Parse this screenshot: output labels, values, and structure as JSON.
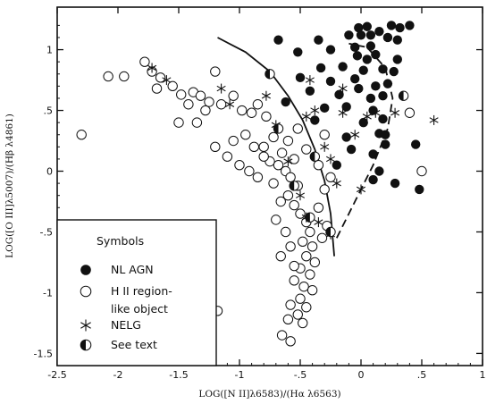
{
  "chart_data": {
    "type": "scatter",
    "title": "",
    "xlabel": "LOG([N II]λ6583)/(Hα λ6563)",
    "ylabel": "LOG([O III]λ5007)/(Hβ λ4861)",
    "xlim": [
      -2.5,
      1.0
    ],
    "ylim": [
      -1.6,
      1.35
    ],
    "grid": false,
    "x_ticks": [
      {
        "value": -2.5,
        "label": "-2.5"
      },
      {
        "value": -2.0,
        "label": "-2"
      },
      {
        "value": -1.5,
        "label": "-1.5"
      },
      {
        "value": -1.0,
        "label": "-1"
      },
      {
        "value": -0.5,
        "label": "-.5"
      },
      {
        "value": 0.0,
        "label": "0"
      },
      {
        "value": 0.5,
        "label": ".5"
      },
      {
        "value": 1.0,
        "label": "1"
      }
    ],
    "y_ticks": [
      {
        "value": 1.0,
        "label": "1"
      },
      {
        "value": 0.5,
        "label": ".5"
      },
      {
        "value": 0.0,
        "label": "0"
      },
      {
        "value": -0.5,
        "label": "-.5"
      },
      {
        "value": -1.0,
        "label": "-1"
      },
      {
        "value": -1.5,
        "label": "-1.5"
      }
    ],
    "legend": {
      "title": "Symbols",
      "position": "bottom-left",
      "entries": [
        {
          "marker": "filled-circle",
          "label": "NL AGN"
        },
        {
          "marker": "open-circle",
          "label": "H II region-",
          "label2": "like object"
        },
        {
          "marker": "asterisk",
          "label": "NELG"
        },
        {
          "marker": "half-filled-circle",
          "label": "See text"
        }
      ]
    },
    "series": [
      {
        "marker": "filled-circle",
        "points": [
          [
            -0.02,
            1.18
          ],
          [
            0.05,
            1.19
          ],
          [
            0.0,
            1.12
          ],
          [
            -0.1,
            1.12
          ],
          [
            -0.05,
            1.02
          ],
          [
            0.08,
            1.03
          ],
          [
            0.15,
            1.15
          ],
          [
            0.22,
            1.1
          ],
          [
            0.25,
            1.2
          ],
          [
            0.32,
            1.18
          ],
          [
            0.4,
            1.2
          ],
          [
            -0.03,
            0.95
          ],
          [
            0.05,
            0.92
          ],
          [
            0.12,
            0.96
          ],
          [
            -0.35,
            1.08
          ],
          [
            -0.68,
            1.08
          ],
          [
            -0.52,
            0.98
          ],
          [
            -0.33,
            0.85
          ],
          [
            -0.15,
            0.86
          ],
          [
            0.02,
            0.83
          ],
          [
            0.18,
            0.84
          ],
          [
            0.27,
            0.82
          ],
          [
            0.3,
            0.92
          ],
          [
            -0.5,
            0.77
          ],
          [
            -0.25,
            0.74
          ],
          [
            -0.05,
            0.76
          ],
          [
            0.12,
            0.7
          ],
          [
            0.22,
            0.72
          ],
          [
            -0.42,
            0.66
          ],
          [
            -0.18,
            0.63
          ],
          [
            0.08,
            0.6
          ],
          [
            0.18,
            0.62
          ],
          [
            -0.3,
            0.52
          ],
          [
            -0.12,
            0.53
          ],
          [
            0.1,
            0.5
          ],
          [
            -0.62,
            0.57
          ],
          [
            -0.38,
            0.42
          ],
          [
            0.02,
            0.4
          ],
          [
            0.18,
            0.43
          ],
          [
            -0.12,
            0.28
          ],
          [
            0.15,
            0.31
          ],
          [
            0.2,
            0.3
          ],
          [
            -0.08,
            0.18
          ],
          [
            0.1,
            0.14
          ],
          [
            -0.2,
            0.05
          ],
          [
            0.15,
            0.0
          ],
          [
            0.28,
            -0.1
          ],
          [
            0.45,
            0.22
          ],
          [
            0.48,
            -0.15
          ],
          [
            0.1,
            -0.07
          ],
          [
            0.2,
            0.22
          ],
          [
            -0.02,
            0.68
          ],
          [
            0.3,
            1.08
          ],
          [
            -0.25,
            1.0
          ],
          [
            0.08,
            1.12
          ]
        ]
      },
      {
        "marker": "open-circle",
        "points": [
          [
            -2.3,
            0.3
          ],
          [
            -2.08,
            0.78
          ],
          [
            -1.95,
            0.78
          ],
          [
            -1.78,
            0.9
          ],
          [
            -1.72,
            0.82
          ],
          [
            -1.65,
            0.77
          ],
          [
            -1.55,
            0.7
          ],
          [
            -1.48,
            0.63
          ],
          [
            -1.42,
            0.55
          ],
          [
            -1.38,
            0.65
          ],
          [
            -1.32,
            0.62
          ],
          [
            -1.25,
            0.57
          ],
          [
            -1.2,
            0.82
          ],
          [
            -1.15,
            0.55
          ],
          [
            -1.05,
            0.62
          ],
          [
            -0.98,
            0.5
          ],
          [
            -0.9,
            0.48
          ],
          [
            -0.85,
            0.55
          ],
          [
            -0.78,
            0.45
          ],
          [
            -1.35,
            0.4
          ],
          [
            -1.05,
            0.25
          ],
          [
            -0.95,
            0.3
          ],
          [
            -0.88,
            0.2
          ],
          [
            -0.8,
            0.2
          ],
          [
            -0.72,
            0.28
          ],
          [
            -0.65,
            0.15
          ],
          [
            -0.6,
            0.25
          ],
          [
            -0.55,
            0.1
          ],
          [
            -0.68,
            0.05
          ],
          [
            -0.75,
            0.08
          ],
          [
            -0.62,
            0.0
          ],
          [
            -0.58,
            -0.05
          ],
          [
            -0.52,
            -0.12
          ],
          [
            -0.6,
            -0.2
          ],
          [
            -0.55,
            -0.28
          ],
          [
            -0.5,
            -0.35
          ],
          [
            -0.45,
            -0.42
          ],
          [
            -0.42,
            -0.5
          ],
          [
            -0.48,
            -0.58
          ],
          [
            -0.4,
            -0.62
          ],
          [
            -0.45,
            -0.7
          ],
          [
            -0.38,
            -0.75
          ],
          [
            -0.5,
            -0.8
          ],
          [
            -0.42,
            -0.85
          ],
          [
            -0.55,
            -0.9
          ],
          [
            -0.47,
            -0.95
          ],
          [
            -0.4,
            -0.98
          ],
          [
            -0.5,
            -1.05
          ],
          [
            -0.58,
            -1.1
          ],
          [
            -0.45,
            -1.12
          ],
          [
            -0.52,
            -1.18
          ],
          [
            -0.6,
            -1.22
          ],
          [
            -0.48,
            -1.25
          ],
          [
            -0.65,
            -1.35
          ],
          [
            -0.58,
            -1.4
          ],
          [
            -0.3,
            -0.15
          ],
          [
            -0.35,
            -0.3
          ],
          [
            -0.28,
            -0.45
          ],
          [
            -0.32,
            -0.55
          ],
          [
            -1.1,
            0.12
          ],
          [
            -1.0,
            0.05
          ],
          [
            -0.92,
            0.0
          ],
          [
            -0.85,
            -0.05
          ],
          [
            -0.8,
            0.12
          ],
          [
            -0.72,
            -0.1
          ],
          [
            -0.66,
            -0.25
          ],
          [
            -0.7,
            -0.4
          ],
          [
            -0.62,
            -0.5
          ],
          [
            -0.58,
            -0.62
          ],
          [
            -0.66,
            -0.7
          ],
          [
            -0.55,
            -0.78
          ],
          [
            -1.2,
            0.2
          ],
          [
            -1.28,
            0.5
          ],
          [
            -1.5,
            0.4
          ],
          [
            -1.68,
            0.68
          ],
          [
            -0.52,
            0.35
          ],
          [
            -0.45,
            0.18
          ],
          [
            -0.35,
            0.05
          ],
          [
            -0.3,
            0.3
          ],
          [
            -0.25,
            -0.05
          ],
          [
            -1.18,
            -1.15
          ],
          [
            0.5,
            0.0
          ],
          [
            0.4,
            0.48
          ]
        ]
      },
      {
        "marker": "asterisk",
        "points": [
          [
            -1.72,
            0.85
          ],
          [
            -1.6,
            0.75
          ],
          [
            -1.15,
            0.68
          ],
          [
            -1.08,
            0.55
          ],
          [
            -0.78,
            0.62
          ],
          [
            -0.7,
            0.38
          ],
          [
            -0.6,
            0.08
          ],
          [
            -0.45,
            0.45
          ],
          [
            -0.38,
            0.5
          ],
          [
            -0.15,
            0.48
          ],
          [
            0.05,
            0.45
          ],
          [
            0.12,
            0.48
          ],
          [
            -0.05,
            0.3
          ],
          [
            -0.25,
            0.1
          ],
          [
            -0.2,
            -0.1
          ],
          [
            -0.5,
            -0.2
          ],
          [
            -0.45,
            -0.38
          ],
          [
            -0.35,
            -0.42
          ],
          [
            -0.25,
            -0.52
          ],
          [
            0.0,
            -0.15
          ],
          [
            0.6,
            0.42
          ],
          [
            0.28,
            0.48
          ],
          [
            -0.15,
            0.68
          ],
          [
            -0.42,
            0.75
          ],
          [
            -0.3,
            0.2
          ]
        ]
      },
      {
        "marker": "half-filled-circle",
        "points": [
          [
            -0.75,
            0.8
          ],
          [
            -0.68,
            0.35
          ],
          [
            -0.55,
            -0.12
          ],
          [
            -0.42,
            -0.38
          ],
          [
            -0.25,
            -0.5
          ],
          [
            0.35,
            0.62
          ],
          [
            -0.38,
            0.12
          ]
        ]
      }
    ],
    "curves": [
      {
        "style": "solid",
        "points": [
          [
            -1.18,
            1.1
          ],
          [
            -0.95,
            0.98
          ],
          [
            -0.75,
            0.82
          ],
          [
            -0.6,
            0.62
          ],
          [
            -0.48,
            0.42
          ],
          [
            -0.38,
            0.18
          ],
          [
            -0.3,
            -0.08
          ],
          [
            -0.25,
            -0.35
          ],
          [
            -0.22,
            -0.7
          ]
        ]
      },
      {
        "style": "dashed",
        "points": [
          [
            -0.2,
            -0.55
          ],
          [
            -0.05,
            -0.25
          ],
          [
            0.1,
            0.05
          ],
          [
            0.22,
            0.35
          ],
          [
            0.26,
            0.6
          ],
          [
            0.2,
            0.85
          ],
          [
            0.05,
            1.02
          ],
          [
            -0.1,
            1.05
          ]
        ]
      }
    ]
  }
}
